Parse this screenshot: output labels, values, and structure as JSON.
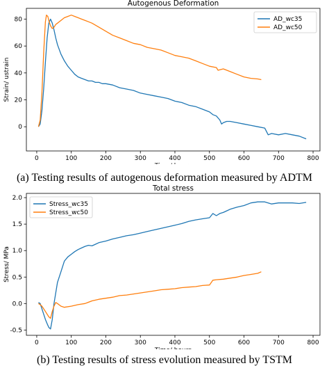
{
  "captions": {
    "a": "(a) Testing results of autogenous deformation measured by ADTM",
    "b": "(b) Testing results of stress evolution measured by TSTM"
  },
  "colors": {
    "series1": "#1f77b4",
    "series2": "#ff7f0e"
  },
  "chart_data": [
    {
      "type": "line",
      "title": "Autogenous Deformation",
      "xlabel": "Time/ hours",
      "ylabel": "Strain/ ustrain",
      "xlim": [
        -30,
        820
      ],
      "ylim": [
        -18,
        88
      ],
      "xticks": [
        0,
        100,
        200,
        300,
        400,
        500,
        600,
        700,
        800
      ],
      "yticks": [
        0,
        20,
        40,
        60,
        80
      ],
      "grid": false,
      "legend_position": "top-right",
      "series": [
        {
          "name": "AD_wc35",
          "color": "#1f77b4",
          "x": [
            5,
            10,
            15,
            20,
            25,
            30,
            35,
            40,
            45,
            50,
            55,
            60,
            70,
            80,
            90,
            100,
            110,
            120,
            130,
            140,
            150,
            160,
            170,
            180,
            190,
            200,
            220,
            240,
            260,
            280,
            300,
            320,
            340,
            360,
            380,
            400,
            420,
            440,
            460,
            480,
            500,
            510,
            520,
            530,
            535,
            540,
            550,
            560,
            580,
            600,
            620,
            640,
            660,
            670,
            680,
            700,
            720,
            740,
            760,
            780
          ],
          "y": [
            0,
            2,
            12,
            28,
            48,
            66,
            77,
            80,
            77,
            72,
            66,
            61,
            54,
            49,
            45,
            42,
            39,
            37,
            36,
            35,
            34,
            34,
            33,
            33,
            32,
            32,
            31,
            29,
            28,
            27,
            25,
            24,
            23,
            22,
            21,
            19,
            18,
            16,
            15,
            13,
            11,
            9,
            8,
            5,
            2,
            3,
            4,
            4,
            3,
            2,
            1,
            0,
            -1,
            -6,
            -5,
            -6,
            -5,
            -6,
            -7,
            -9
          ]
        },
        {
          "name": "AD_wc50",
          "color": "#ff7f0e",
          "x": [
            5,
            10,
            15,
            20,
            25,
            28,
            32,
            36,
            40,
            45,
            50,
            55,
            60,
            70,
            80,
            90,
            100,
            110,
            120,
            130,
            140,
            150,
            160,
            180,
            200,
            220,
            240,
            260,
            280,
            300,
            320,
            340,
            360,
            380,
            400,
            420,
            440,
            460,
            480,
            500,
            520,
            525,
            540,
            560,
            580,
            600,
            620,
            640,
            650
          ],
          "y": [
            0,
            5,
            25,
            55,
            78,
            83,
            82,
            78,
            75,
            73,
            74,
            76,
            77,
            79,
            81,
            82,
            83,
            82,
            81,
            80,
            79,
            78,
            77,
            74,
            71,
            68,
            66,
            64,
            62,
            61,
            59,
            58,
            57,
            55,
            53,
            52,
            51,
            49,
            47,
            45,
            44,
            42,
            43,
            41,
            39,
            37,
            36,
            35.5,
            35
          ]
        }
      ]
    },
    {
      "type": "line",
      "title": "Total stress",
      "xlabel": "Time/ hours",
      "ylabel": "Stress/ MPa",
      "xlim": [
        -30,
        820
      ],
      "ylim": [
        -0.6,
        2.08
      ],
      "xticks": [
        0,
        100,
        200,
        300,
        400,
        500,
        600,
        700,
        800
      ],
      "yticks": [
        -0.5,
        0.0,
        0.5,
        1.0,
        1.5,
        2.0
      ],
      "grid": false,
      "legend_position": "top-left",
      "series": [
        {
          "name": "Stress_wc35",
          "color": "#1f77b4",
          "x": [
            5,
            10,
            15,
            20,
            25,
            30,
            35,
            40,
            45,
            50,
            55,
            60,
            70,
            80,
            90,
            100,
            110,
            120,
            130,
            140,
            150,
            160,
            170,
            180,
            200,
            220,
            240,
            260,
            280,
            300,
            320,
            340,
            360,
            380,
            400,
            420,
            440,
            460,
            480,
            500,
            510,
            520,
            530,
            540,
            550,
            560,
            580,
            600,
            620,
            640,
            660,
            680,
            700,
            720,
            740,
            760,
            780
          ],
          "y": [
            0.02,
            0.0,
            -0.1,
            -0.2,
            -0.3,
            -0.38,
            -0.45,
            -0.48,
            -0.3,
            0.0,
            0.2,
            0.4,
            0.6,
            0.8,
            0.88,
            0.93,
            0.98,
            1.02,
            1.05,
            1.08,
            1.1,
            1.09,
            1.12,
            1.15,
            1.18,
            1.22,
            1.25,
            1.28,
            1.3,
            1.33,
            1.36,
            1.39,
            1.42,
            1.45,
            1.48,
            1.51,
            1.55,
            1.58,
            1.6,
            1.62,
            1.7,
            1.66,
            1.7,
            1.72,
            1.75,
            1.78,
            1.82,
            1.85,
            1.9,
            1.92,
            1.92,
            1.88,
            1.9,
            1.9,
            1.9,
            1.89,
            1.91
          ]
        },
        {
          "name": "Stress_wc50",
          "color": "#ff7f0e",
          "x": [
            5,
            10,
            15,
            20,
            25,
            30,
            35,
            40,
            45,
            50,
            55,
            60,
            70,
            80,
            100,
            120,
            140,
            160,
            180,
            200,
            220,
            240,
            260,
            280,
            300,
            320,
            340,
            360,
            380,
            400,
            420,
            440,
            460,
            480,
            500,
            510,
            520,
            540,
            560,
            580,
            600,
            620,
            640,
            650
          ],
          "y": [
            0.0,
            -0.02,
            -0.05,
            -0.1,
            -0.15,
            -0.2,
            -0.25,
            -0.28,
            -0.15,
            -0.05,
            0.02,
            0.0,
            -0.05,
            -0.07,
            -0.05,
            -0.02,
            0.0,
            0.05,
            0.08,
            0.1,
            0.12,
            0.15,
            0.16,
            0.18,
            0.2,
            0.22,
            0.24,
            0.26,
            0.27,
            0.28,
            0.3,
            0.31,
            0.32,
            0.34,
            0.35,
            0.44,
            0.45,
            0.46,
            0.48,
            0.5,
            0.53,
            0.55,
            0.57,
            0.6
          ]
        }
      ]
    }
  ]
}
